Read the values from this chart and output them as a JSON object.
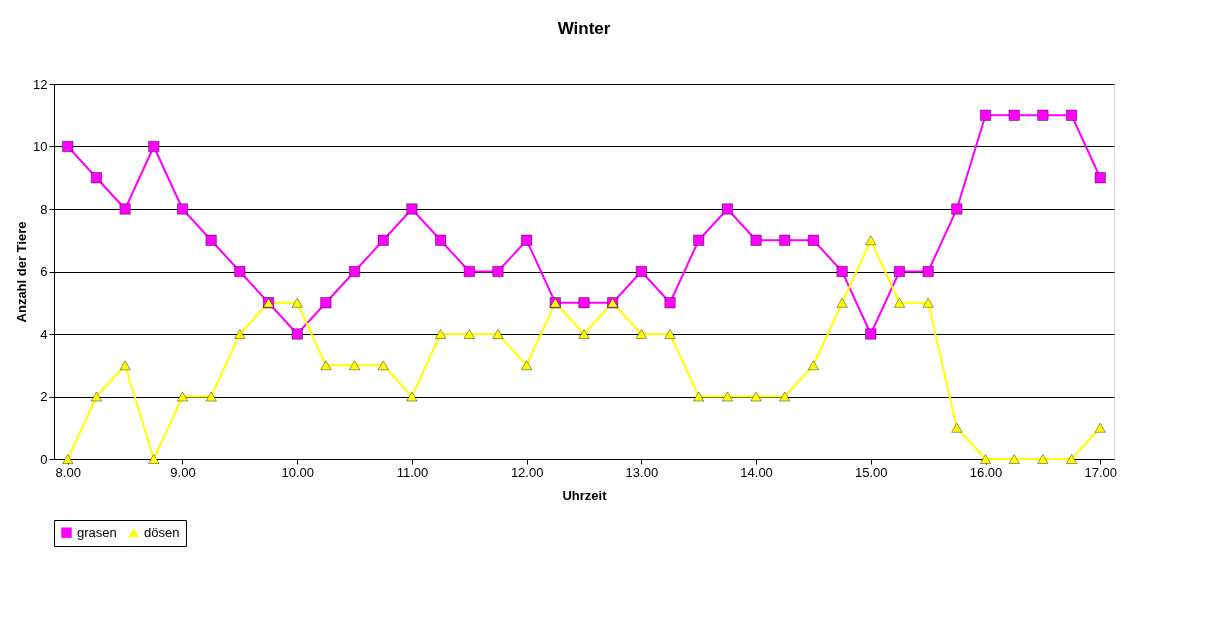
{
  "chart_data": {
    "type": "line",
    "title": "Winter",
    "xlabel": "Uhrzeit",
    "ylabel": "Anzahl der Tiere",
    "x": [
      8,
      8.25,
      8.5,
      8.75,
      9,
      9.25,
      9.5,
      9.75,
      10,
      10.25,
      10.5,
      10.75,
      11,
      11.25,
      11.5,
      11.75,
      12,
      12.25,
      12.5,
      12.75,
      13,
      13.25,
      13.5,
      13.75,
      14,
      14.25,
      14.5,
      14.75,
      15,
      15.25,
      15.5,
      15.75,
      16,
      16.25,
      16.5,
      16.75,
      17
    ],
    "series": [
      {
        "name": "grasen",
        "color": "#ff00ff",
        "marker": "square",
        "values": [
          10,
          9,
          8,
          10,
          8,
          7,
          6,
          5,
          4,
          5,
          6,
          7,
          8,
          7,
          6,
          6,
          7,
          5,
          5,
          5,
          6,
          5,
          7,
          8,
          7,
          7,
          7,
          6,
          4,
          6,
          6,
          8,
          11,
          11,
          11,
          11,
          9
        ]
      },
      {
        "name": "dösen",
        "color": "#ffff00",
        "marker": "triangle",
        "values": [
          0,
          2,
          3,
          0,
          2,
          2,
          4,
          5,
          5,
          3,
          3,
          3,
          2,
          4,
          4,
          4,
          3,
          5,
          4,
          5,
          4,
          4,
          2,
          2,
          2,
          2,
          3,
          5,
          7,
          5,
          5,
          1,
          0,
          0,
          0,
          0,
          1
        ]
      }
    ],
    "xlim": [
      7.88,
      17.12
    ],
    "xticks": [
      {
        "value": 8,
        "label": "8.00"
      },
      {
        "value": 9,
        "label": "9.00"
      },
      {
        "value": 10,
        "label": "10.00"
      },
      {
        "value": 11,
        "label": "11.00"
      },
      {
        "value": 12,
        "label": "12.00"
      },
      {
        "value": 13,
        "label": "13.00"
      },
      {
        "value": 14,
        "label": "14.00"
      },
      {
        "value": 15,
        "label": "15.00"
      },
      {
        "value": 16,
        "label": "16.00"
      },
      {
        "value": 17,
        "label": "17.00"
      }
    ],
    "ylim": [
      0,
      12
    ],
    "yticks": [
      0,
      2,
      4,
      6,
      8,
      10,
      12
    ],
    "grid": "y",
    "legend": "bottom",
    "line_style": "solid"
  }
}
